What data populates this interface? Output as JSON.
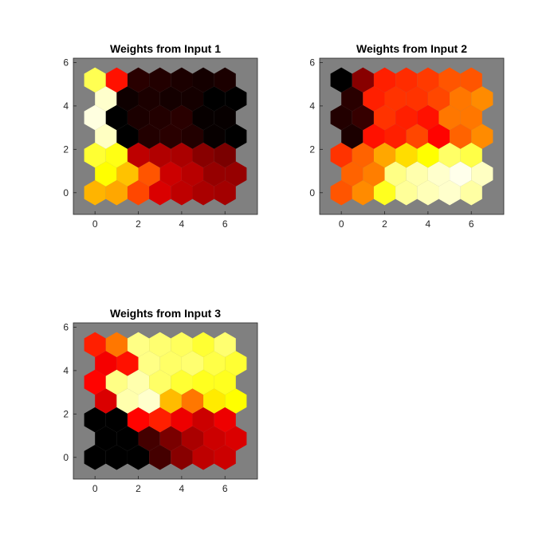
{
  "chart_data": [
    {
      "type": "heatmap",
      "subtype": "som-weight-plane-hexagonal",
      "title": "Weights from Input 1",
      "xlim": [
        -1,
        7.5
      ],
      "ylim": [
        -1,
        6.2
      ],
      "xticks": [
        "0",
        "2",
        "4",
        "6"
      ],
      "yticks": [
        "0",
        "2",
        "4",
        "6"
      ],
      "grid": "off",
      "background_color": "#808080",
      "colormap": "hot",
      "rows": 7,
      "cols": 7,
      "values": [
        [
          0.64,
          0.62,
          0.48,
          0.32,
          0.28,
          0.25,
          0.24
        ],
        [
          0.75,
          0.66,
          0.5,
          0.3,
          0.27,
          0.22,
          0.22
        ],
        [
          0.8,
          0.77,
          0.28,
          0.26,
          0.25,
          0.2,
          0.18
        ],
        [
          0.94,
          0.0,
          0.05,
          0.06,
          0.05,
          0.01,
          0.0
        ],
        [
          0.97,
          0.0,
          0.04,
          0.05,
          0.06,
          0.01,
          0.01
        ],
        [
          0.95,
          0.02,
          0.04,
          0.03,
          0.03,
          0.0,
          0.0
        ],
        [
          0.83,
          0.4,
          0.06,
          0.05,
          0.04,
          0.03,
          0.04
        ]
      ]
    },
    {
      "type": "heatmap",
      "subtype": "som-weight-plane-hexagonal",
      "title": "Weights from Input 2",
      "xlim": [
        -1,
        7.5
      ],
      "ylim": [
        -1,
        6.2
      ],
      "xticks": [
        "0",
        "2",
        "4",
        "6"
      ],
      "yticks": [
        "0",
        "2",
        "4",
        "6"
      ],
      "grid": "off",
      "background_color": "#808080",
      "colormap": "hot",
      "rows": 7,
      "cols": 7,
      "values": [
        [
          0.5,
          0.58,
          0.78,
          0.9,
          0.93,
          0.95,
          0.91
        ],
        [
          0.52,
          0.56,
          0.88,
          0.92,
          0.95,
          0.98,
          0.94
        ],
        [
          0.45,
          0.52,
          0.62,
          0.7,
          0.75,
          0.85,
          0.82
        ],
        [
          0.04,
          0.4,
          0.42,
          0.48,
          0.38,
          0.52,
          0.58
        ],
        [
          0.05,
          0.08,
          0.45,
          0.42,
          0.4,
          0.55,
          0.55
        ],
        [
          0.06,
          0.42,
          0.45,
          0.45,
          0.48,
          0.55,
          0.58
        ],
        [
          0.0,
          0.2,
          0.42,
          0.44,
          0.46,
          0.5,
          0.5
        ]
      ]
    },
    {
      "type": "heatmap",
      "subtype": "som-weight-plane-hexagonal",
      "title": "Weights from Input 3",
      "xlim": [
        -1,
        7.5
      ],
      "ylim": [
        -1,
        6.2
      ],
      "xticks": [
        "0",
        "2",
        "4",
        "6"
      ],
      "yticks": [
        "0",
        "2",
        "4",
        "6"
      ],
      "grid": "off",
      "background_color": "#808080",
      "colormap": "hot",
      "rows": 7,
      "cols": 7,
      "values": [
        [
          0.0,
          0.0,
          0.0,
          0.1,
          0.2,
          0.28,
          0.3
        ],
        [
          0.0,
          0.0,
          0.1,
          0.18,
          0.25,
          0.3,
          0.32
        ],
        [
          0.0,
          0.0,
          0.38,
          0.42,
          0.35,
          0.3,
          0.35
        ],
        [
          0.32,
          0.92,
          0.95,
          0.65,
          0.55,
          0.72,
          0.75
        ],
        [
          0.38,
          0.88,
          0.92,
          0.85,
          0.8,
          0.78,
          0.78
        ],
        [
          0.36,
          0.4,
          0.88,
          0.85,
          0.86,
          0.82,
          0.8
        ],
        [
          0.42,
          0.55,
          0.88,
          0.86,
          0.84,
          0.8,
          0.86
        ]
      ]
    }
  ]
}
